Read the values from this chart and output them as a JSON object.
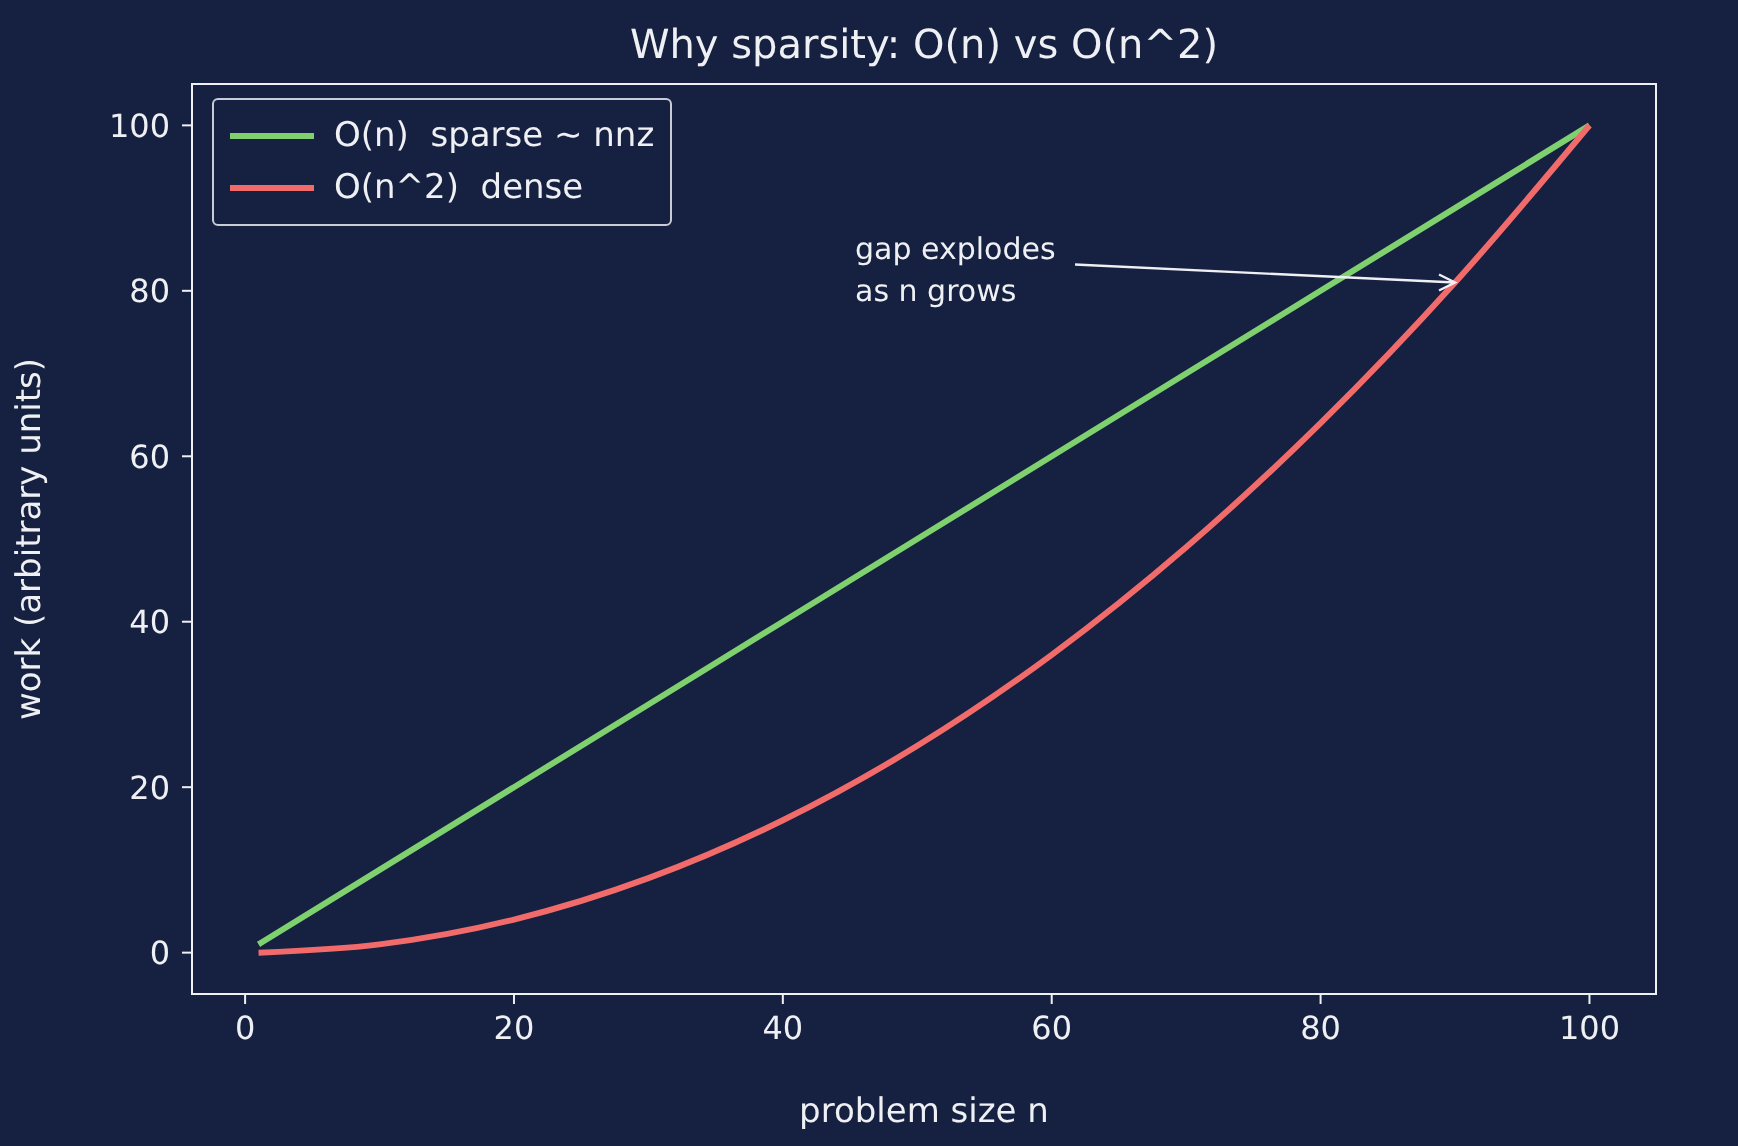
{
  "chart_data": {
    "type": "line",
    "title": "Why sparsity: O(n) vs O(n^2)",
    "xlabel": "problem size n",
    "ylabel": "work (arbitrary units)",
    "x": [
      1,
      10,
      20,
      30,
      40,
      50,
      60,
      70,
      80,
      90,
      100
    ],
    "series": [
      {
        "name": "O(n)  sparse ~ nnz",
        "color": "#7fd06e",
        "values": [
          1,
          10,
          20,
          30,
          40,
          50,
          60,
          70,
          80,
          90,
          100
        ]
      },
      {
        "name": "O(n^2)  dense",
        "color": "#f26b6b",
        "values": [
          0,
          1,
          4,
          9,
          16,
          25,
          36,
          49,
          64,
          81,
          100
        ]
      }
    ],
    "xlim": [
      -3.95,
      104.95
    ],
    "xticks": [
      0,
      20,
      40,
      60,
      80,
      100
    ],
    "ylim": [
      -5,
      105
    ],
    "yticks": [
      0,
      20,
      40,
      60,
      80,
      100
    ],
    "grid": false,
    "legend": "top left",
    "marker": "none",
    "line_style": "solid",
    "annotations": [
      {
        "text": "gap explodes\nas n grows",
        "x": 90,
        "y": 81
      }
    ]
  }
}
